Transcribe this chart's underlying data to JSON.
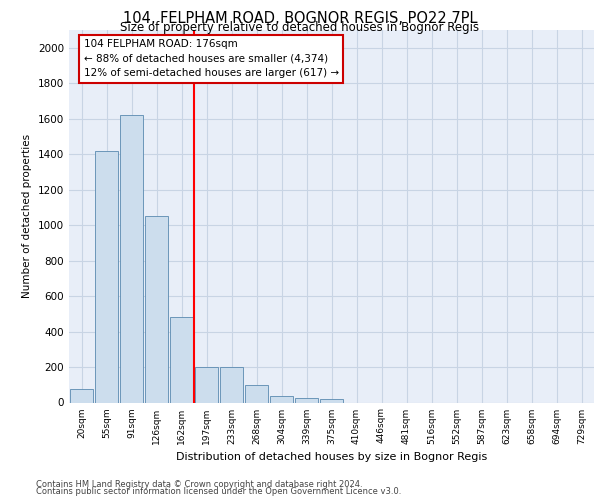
{
  "title_line1": "104, FELPHAM ROAD, BOGNOR REGIS, PO22 7PL",
  "title_line2": "Size of property relative to detached houses in Bognor Regis",
  "xlabel": "Distribution of detached houses by size in Bognor Regis",
  "ylabel": "Number of detached properties",
  "categories": [
    "20sqm",
    "55sqm",
    "91sqm",
    "126sqm",
    "162sqm",
    "197sqm",
    "233sqm",
    "268sqm",
    "304sqm",
    "339sqm",
    "375sqm",
    "410sqm",
    "446sqm",
    "481sqm",
    "516sqm",
    "552sqm",
    "587sqm",
    "623sqm",
    "658sqm",
    "694sqm",
    "729sqm"
  ],
  "values": [
    75,
    1420,
    1620,
    1050,
    480,
    200,
    200,
    100,
    35,
    25,
    20,
    0,
    0,
    0,
    0,
    0,
    0,
    0,
    0,
    0,
    0
  ],
  "bar_color": "#ccdded",
  "bar_edgecolor": "#5a8ab0",
  "red_line_x": 4.5,
  "annotation_text": "104 FELPHAM ROAD: 176sqm\n← 88% of detached houses are smaller (4,374)\n12% of semi-detached houses are larger (617) →",
  "annotation_box_facecolor": "#ffffff",
  "annotation_box_edgecolor": "#cc0000",
  "ylim": [
    0,
    2100
  ],
  "yticks": [
    0,
    200,
    400,
    600,
    800,
    1000,
    1200,
    1400,
    1600,
    1800,
    2000
  ],
  "grid_color": "#c8d4e4",
  "background_color": "#e8eef8",
  "footer_line1": "Contains HM Land Registry data © Crown copyright and database right 2024.",
  "footer_line2": "Contains public sector information licensed under the Open Government Licence v3.0."
}
